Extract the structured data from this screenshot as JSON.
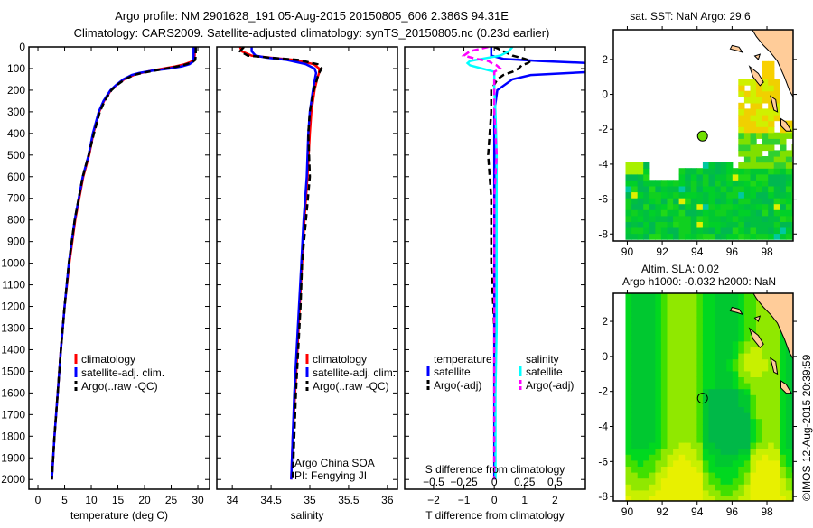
{
  "title": {
    "line1": "Argo profile: NM 2901628_191 05-Aug-2015 20150805_606 2.386S 94.31E",
    "line2": "Climatology: CARS2009. Satellite-adjusted climatology: synTS_20150805.nc (0.23d earlier)"
  },
  "credit": "©IMOS 12-Aug-2015 20:39:59",
  "colors": {
    "climatology": "#ff0000",
    "satellite": "#0000ff",
    "argo": "#000000",
    "sal_sat": "#00ffff",
    "sal_argo": "#ff00ff",
    "land": "#ffcc99"
  },
  "chart_data": [
    {
      "id": "temperature",
      "type": "line",
      "xlabel": "temperature (deg C)",
      "ylabel": "",
      "xlim": [
        -1.7,
        32.2
      ],
      "ylim": [
        2045,
        0
      ],
      "xticks": [
        0,
        5,
        10,
        15,
        20,
        25,
        30
      ],
      "yticks": [
        0,
        100,
        200,
        300,
        400,
        500,
        600,
        700,
        800,
        900,
        1000,
        1100,
        1200,
        1300,
        1400,
        1500,
        1600,
        1700,
        1800,
        1900,
        2000
      ],
      "legend": [
        "climatology",
        "satellite-adj. clim.",
        "Argo(..raw -QC)"
      ],
      "legend_position": "bottom-center",
      "depth": [
        0,
        40,
        60,
        70,
        80,
        90,
        100,
        110,
        120,
        130,
        150,
        175,
        200,
        250,
        300,
        400,
        500,
        600,
        800,
        1000,
        1200,
        1400,
        1600,
        1800,
        2000
      ],
      "series": [
        {
          "name": "climatology",
          "color": "#ff0000",
          "dash": false,
          "values": [
            29.4,
            29.4,
            29.2,
            28.6,
            27.5,
            25.8,
            23.5,
            21.3,
            19.4,
            18.0,
            16.2,
            14.8,
            13.7,
            12.4,
            11.5,
            10.4,
            9.6,
            8.5,
            7.0,
            5.9,
            5.0,
            4.3,
            3.7,
            3.1,
            2.6
          ]
        },
        {
          "name": "satellite-adj. clim.",
          "color": "#0000ff",
          "dash": false,
          "values": [
            29.2,
            29.2,
            29.2,
            29.0,
            28.4,
            27.0,
            24.6,
            21.4,
            19.0,
            17.6,
            16.0,
            14.7,
            13.6,
            12.3,
            11.4,
            10.3,
            9.5,
            8.4,
            6.9,
            5.8,
            5.0,
            4.3,
            3.7,
            3.1,
            2.6
          ]
        },
        {
          "name": "Argo(..raw -QC)",
          "color": "#000000",
          "dash": true,
          "values": [
            29.6,
            29.6,
            29.5,
            29.0,
            27.9,
            26.2,
            24.0,
            21.8,
            19.6,
            18.0,
            16.3,
            14.9,
            13.8,
            12.5,
            11.6,
            10.5,
            9.5,
            8.4,
            6.9,
            5.8,
            5.0,
            4.3,
            3.7,
            3.1,
            2.6
          ]
        }
      ]
    },
    {
      "id": "salinity",
      "type": "line",
      "xlabel": "salinity",
      "xlim": [
        33.8,
        36.13
      ],
      "ylim": [
        2045,
        0
      ],
      "xticks": [
        34,
        34.5,
        35,
        35.5,
        36
      ],
      "legend": [
        "climatology",
        "satellite-adj. clim.",
        "Argo(..raw -QC)"
      ],
      "legend_position": "bottom-right",
      "annotation": [
        "Argo China SOA",
        "PI: Fengying JI"
      ],
      "depth": [
        0,
        20,
        40,
        50,
        60,
        80,
        100,
        120,
        140,
        200,
        300,
        400,
        600,
        800,
        1000,
        1200,
        1400,
        1600,
        1800,
        2000
      ],
      "series": [
        {
          "name": "climatology",
          "color": "#ff0000",
          "dash": false,
          "values": [
            34.1,
            34.12,
            34.25,
            34.5,
            34.8,
            35.05,
            35.12,
            35.12,
            35.1,
            35.06,
            35.02,
            35.0,
            34.97,
            34.93,
            34.9,
            34.87,
            34.84,
            34.81,
            34.78,
            34.76
          ]
        },
        {
          "name": "satellite-adj. clim.",
          "color": "#0000ff",
          "dash": false,
          "values": [
            34.25,
            34.25,
            34.3,
            34.45,
            34.7,
            34.95,
            35.06,
            35.08,
            35.07,
            35.04,
            35.0,
            34.98,
            34.96,
            34.92,
            34.89,
            34.86,
            34.83,
            34.8,
            34.78,
            34.76
          ]
        },
        {
          "name": "Argo(..raw -QC)",
          "color": "#000000",
          "dash": true,
          "values": [
            34.15,
            34.1,
            34.2,
            34.5,
            34.85,
            35.1,
            35.15,
            35.12,
            35.1,
            35.05,
            35.0,
            34.98,
            35.0,
            34.95,
            34.9,
            34.88,
            34.85,
            34.82,
            34.8,
            34.78
          ]
        }
      ]
    },
    {
      "id": "difference",
      "type": "line",
      "xlabel": "T difference from climatology",
      "xlabel_top": "S difference from climatology",
      "xlim": [
        -2.95,
        3.0
      ],
      "ylim": [
        2045,
        0
      ],
      "xticks": [
        -2,
        -1,
        0,
        1,
        2
      ],
      "xticks_s": [
        -0.5,
        -0.25,
        0,
        0.25,
        0.5
      ],
      "s_to_t_scale": 4,
      "legend_headers": [
        "temperature",
        "salinity"
      ],
      "legend": [
        "satellite",
        "Argo(-adj)",
        "satellite",
        "Argo(-adj)"
      ],
      "legend_position": "bottom-center",
      "depth": [
        0,
        20,
        40,
        55,
        65,
        75,
        85,
        100,
        115,
        130,
        150,
        200,
        300,
        500,
        700,
        1000,
        1300,
        1600,
        1900,
        2000
      ],
      "series": [
        {
          "name": "temperature satellite",
          "color": "#0000ff",
          "dash": false,
          "unit": "T",
          "values": [
            -0.1,
            -0.1,
            -0.1,
            0.3,
            1.5,
            3.2,
            3.2,
            3.2,
            3.2,
            1.2,
            0.6,
            0.1,
            0.0,
            0.0,
            0.0,
            0.0,
            0.0,
            0.0,
            0.0,
            0.0
          ]
        },
        {
          "name": "temperature Argo(-adj)",
          "color": "#000000",
          "dash": true,
          "unit": "T",
          "values": [
            0.0,
            0.3,
            0.6,
            1.0,
            1.2,
            1.1,
            0.9,
            0.8,
            0.6,
            0.3,
            0.1,
            -0.1,
            -0.1,
            -0.2,
            -0.1,
            -0.1,
            0.0,
            0.0,
            0.0,
            0.0
          ]
        },
        {
          "name": "salinity satellite",
          "color": "#00ffff",
          "dash": false,
          "unit": "S",
          "values": [
            0.15,
            0.12,
            0.05,
            -0.1,
            -0.2,
            -0.22,
            -0.2,
            -0.1,
            0.0,
            0.0,
            0.0,
            0.0,
            0.01,
            0.02,
            0.02,
            0.02,
            0.02,
            0.01,
            0.01,
            0.01
          ]
        },
        {
          "name": "salinity Argo(-adj)",
          "color": "#ff00ff",
          "dash": true,
          "unit": "S",
          "values": [
            -0.05,
            -0.2,
            -0.25,
            -0.15,
            -0.05,
            -0.02,
            0.02,
            0.05,
            0.0,
            0.0,
            0.0,
            0.0,
            0.0,
            0.02,
            0.0,
            0.0,
            0.0,
            0.0,
            0.0,
            0.0
          ]
        }
      ]
    },
    {
      "id": "sst-map",
      "type": "heatmap",
      "title": "sat. SST: NaN Argo: 29.6",
      "xlim": [
        89.2,
        99.5
      ],
      "ylim": [
        -8.4,
        3.7
      ],
      "xticks": [
        90,
        92,
        94,
        96,
        98
      ],
      "yticks": [
        2,
        0,
        -2,
        -4,
        -6,
        -8
      ],
      "argo_position": {
        "lon": 94.31,
        "lat": -2.386
      }
    },
    {
      "id": "sla-map",
      "type": "heatmap",
      "title_line1": "Altim. SLA: 0.02",
      "title_line2": "Argo h1000: -0.032 h2000: NaN",
      "xlim": [
        89.2,
        99.5
      ],
      "ylim": [
        -8.25,
        3.6
      ],
      "xticks": [
        90,
        92,
        94,
        96,
        98
      ],
      "yticks": [
        2,
        0,
        -2,
        -4,
        -6,
        -8
      ],
      "argo_position": {
        "lon": 94.31,
        "lat": -2.386
      }
    }
  ]
}
